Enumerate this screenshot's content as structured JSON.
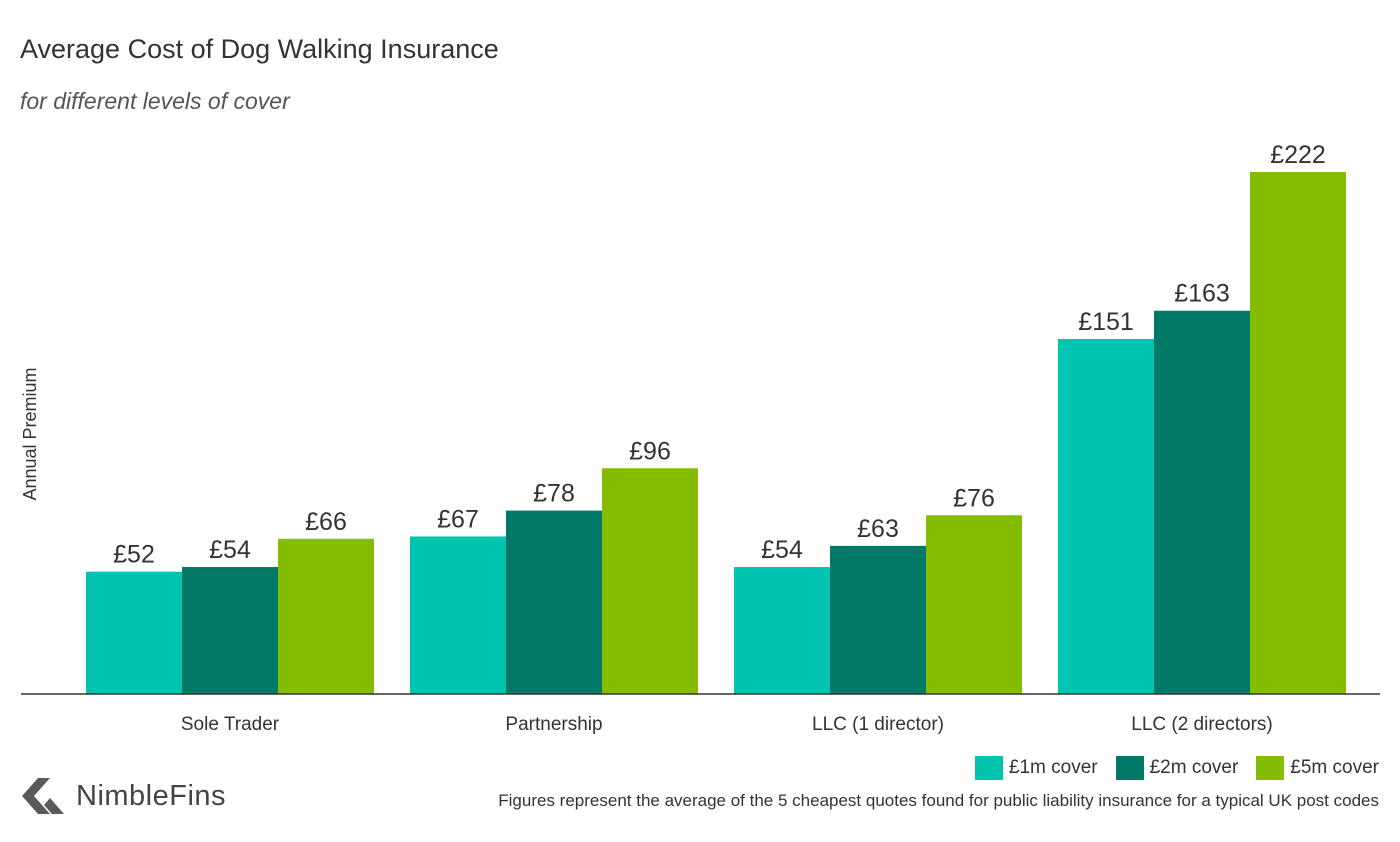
{
  "title": "Average Cost of Dog Walking Insurance",
  "subtitle": "for different levels of cover",
  "colors": {
    "cover_1m": "#00c4b0",
    "cover_2m": "#007a66",
    "cover_5m": "#84bd00",
    "axis": "#333333",
    "text": "#333333"
  },
  "legend": [
    {
      "label": "£1m cover",
      "color": "#00c4b0"
    },
    {
      "label": "£2m cover",
      "color": "#007a66"
    },
    {
      "label": "£5m cover",
      "color": "#84bd00"
    }
  ],
  "brand": {
    "name": "NimbleFins",
    "logo_icon": "nimblefins-arrow-icon"
  },
  "footnote": "Figures represent the average of the 5 cheapest quotes found for public liability insurance for a typical UK post codes",
  "chart_data": {
    "type": "bar",
    "title": "Average Cost of Dog Walking Insurance",
    "subtitle": "for different levels of cover",
    "xlabel": "",
    "ylabel": "Annual Premium",
    "categories": [
      "Sole Trader",
      "Partnership",
      "LLC (1 director)",
      "LLC (2 directors)"
    ],
    "series": [
      {
        "name": "£1m cover",
        "values": [
          52,
          67,
          54,
          151
        ],
        "labels": [
          "£52",
          "£67",
          "£54",
          "£151"
        ]
      },
      {
        "name": "£2m cover",
        "values": [
          54,
          78,
          63,
          163
        ],
        "labels": [
          "£54",
          "£78",
          "£63",
          "£163"
        ]
      },
      {
        "name": "£5m cover",
        "values": [
          66,
          96,
          76,
          222
        ],
        "labels": [
          "£66",
          "£96",
          "£76",
          "£222"
        ]
      }
    ],
    "ylim": [
      0,
      222
    ],
    "grid": false,
    "legend_position": "bottom-right"
  }
}
